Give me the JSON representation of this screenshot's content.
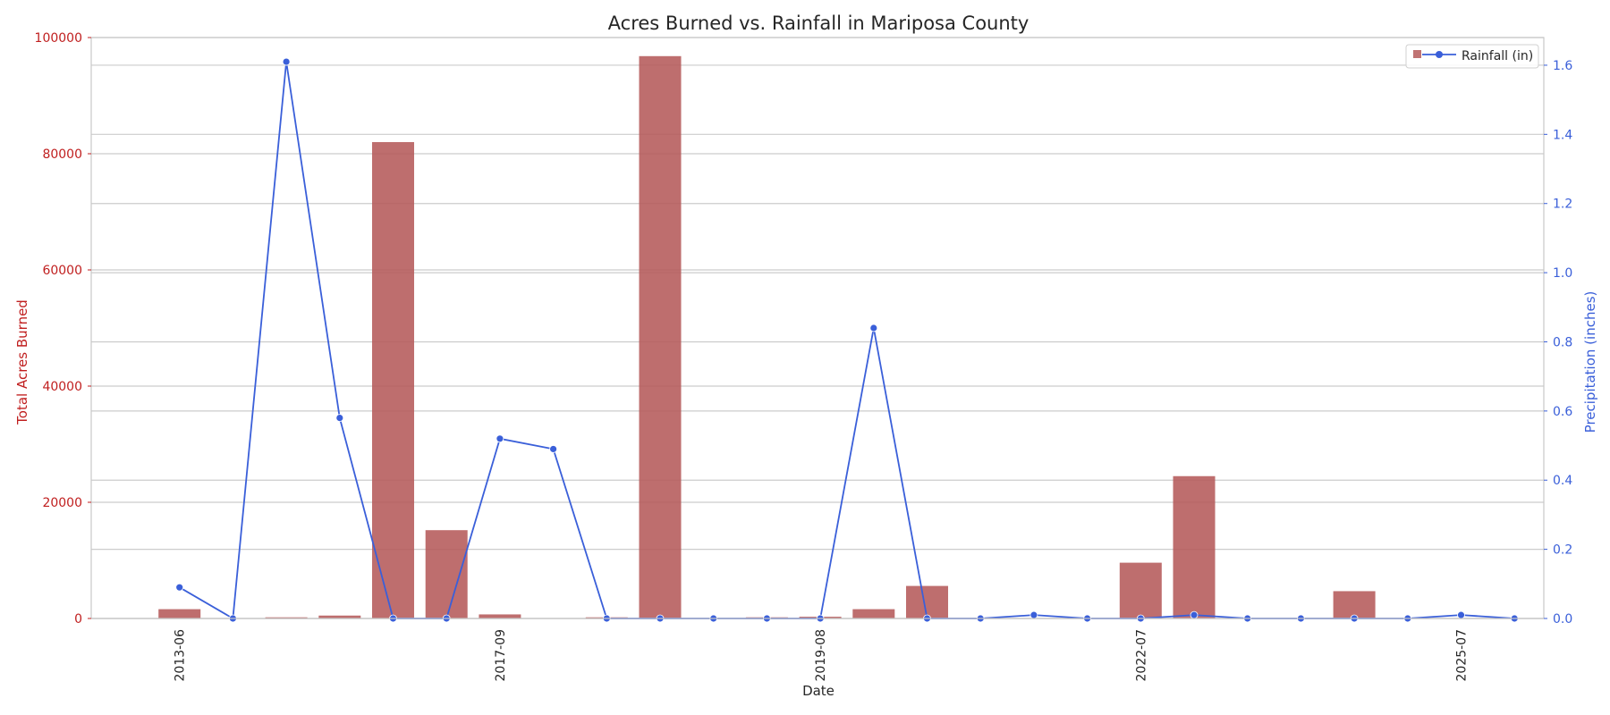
{
  "chart_data": {
    "type": "bar+line",
    "title": "Acres Burned vs. Rainfall in Mariposa County",
    "xlabel": "Date",
    "ylabel_left": "Total Acres Burned",
    "ylabel_right": "Precipitation (inches)",
    "ylim_left": [
      0,
      100000
    ],
    "ylim_right": [
      0,
      1.68
    ],
    "yticks_left": [
      "0",
      "20000",
      "40000",
      "60000",
      "80000",
      "100000"
    ],
    "yticks_right": [
      "0.0",
      "0.2",
      "0.4",
      "0.6",
      "0.8",
      "1.0",
      "1.2",
      "1.4",
      "1.6"
    ],
    "xtick_labels": [
      {
        "label": "2013-06",
        "index": 1
      },
      {
        "label": "2017-09",
        "index": 7
      },
      {
        "label": "2019-08",
        "index": 13
      },
      {
        "label": "2022-07",
        "index": 19
      },
      {
        "label": "2025-07",
        "index": 25
      }
    ],
    "grid": true,
    "legend_placement": "top-right",
    "colors": {
      "bars": "#b55a5a",
      "line": "#3a5fd9",
      "left_axis": "#c01f1f",
      "right_axis": "#3a5fd9"
    },
    "series": [
      {
        "kind": "bar",
        "axis": "left",
        "values": [
          0,
          1600,
          0,
          200,
          500,
          82000,
          15200,
          700,
          0,
          200,
          96800,
          0,
          200,
          300,
          1600,
          5600,
          0,
          0,
          0,
          9600,
          24500,
          0,
          0,
          4700,
          0,
          0,
          0
        ]
      },
      {
        "kind": "line",
        "axis": "right",
        "name": "Rainfall (in)",
        "values": [
          null,
          0.09,
          0.0,
          1.61,
          0.58,
          0.0,
          0.0,
          0.52,
          0.49,
          0.0,
          0.0,
          0.0,
          0.0,
          0.0,
          0.84,
          0.0,
          0.0,
          0.01,
          0.0,
          0.0,
          0.01,
          0.0,
          0.0,
          0.0,
          0.0,
          0.01,
          0.0
        ]
      }
    ]
  }
}
